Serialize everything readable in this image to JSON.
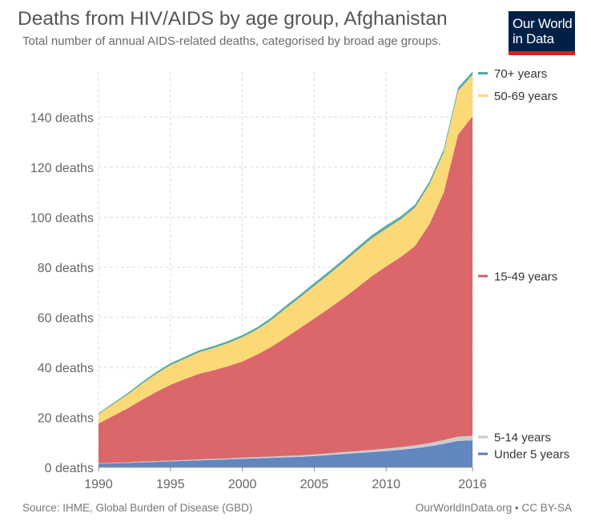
{
  "title": "Deaths from HIV/AIDS by age group, Afghanistan",
  "subtitle": "Total number of annual AIDS-related deaths, categorised by broad age groups.",
  "logo": {
    "line1": "Our World",
    "line2": "in Data",
    "bg": "#002147",
    "accent": "#ce261e"
  },
  "footer": {
    "source": "Source: IHME, Global Burden of Disease (GBD)",
    "license": "OurWorldInData.org • CC BY-SA"
  },
  "chart_data": {
    "type": "area",
    "stacked": true,
    "x": [
      1990,
      1991,
      1992,
      1993,
      1994,
      1995,
      1996,
      1997,
      1998,
      1999,
      2000,
      2001,
      2002,
      2003,
      2004,
      2005,
      2006,
      2007,
      2008,
      2009,
      2010,
      2011,
      2012,
      2013,
      2014,
      2015,
      2016
    ],
    "xlim": [
      1990,
      2016
    ],
    "ylim": [
      0,
      158
    ],
    "x_ticks": [
      1990,
      1995,
      2000,
      2005,
      2010,
      2016
    ],
    "y_ticks": [
      {
        "value": 0,
        "label": "0 deaths"
      },
      {
        "value": 20,
        "label": "20 deaths"
      },
      {
        "value": 40,
        "label": "40 deaths"
      },
      {
        "value": 60,
        "label": "60 deaths"
      },
      {
        "value": 80,
        "label": "80 deaths"
      },
      {
        "value": 100,
        "label": "100 deaths"
      },
      {
        "value": 120,
        "label": "120 deaths"
      },
      {
        "value": 140,
        "label": "140 deaths"
      }
    ],
    "grid": true,
    "legend_placement": "right",
    "series": [
      {
        "name": "Under 5 years",
        "color": "#5a7fba",
        "values": [
          1.5,
          1.6,
          1.8,
          2.0,
          2.2,
          2.4,
          2.6,
          2.8,
          3.0,
          3.2,
          3.4,
          3.6,
          3.8,
          4.0,
          4.2,
          4.5,
          4.9,
          5.3,
          5.7,
          6.1,
          6.5,
          7.0,
          7.6,
          8.4,
          9.4,
          10.6,
          10.8
        ]
      },
      {
        "name": "5-14 years",
        "color": "#c9c9c9",
        "values": [
          0.2,
          0.2,
          0.2,
          0.3,
          0.3,
          0.3,
          0.3,
          0.4,
          0.4,
          0.4,
          0.5,
          0.5,
          0.5,
          0.6,
          0.6,
          0.7,
          0.7,
          0.8,
          0.8,
          0.9,
          1.0,
          1.1,
          1.2,
          1.3,
          1.5,
          1.7,
          1.8
        ]
      },
      {
        "name": "15-49 years",
        "color": "#d95f63",
        "values": [
          15.8,
          18.7,
          21.5,
          24.6,
          27.6,
          30.3,
          32.4,
          34.2,
          35.4,
          36.8,
          38.4,
          40.9,
          43.8,
          47.2,
          50.8,
          54.3,
          57.8,
          61.4,
          65.4,
          69.4,
          72.8,
          75.9,
          79.6,
          87.4,
          98.9,
          120.7,
          127.7
        ]
      },
      {
        "name": "50-69 years",
        "color": "#fbd770",
        "values": [
          3.8,
          4.6,
          5.5,
          6.4,
          7.2,
          7.8,
          8.1,
          8.6,
          8.9,
          9.2,
          9.7,
          10.0,
          10.7,
          11.6,
          12.3,
          13.0,
          13.7,
          14.3,
          14.8,
          15.1,
          15.1,
          15.1,
          15.4,
          15.9,
          16.1,
          17.5,
          16.5
        ]
      },
      {
        "name": "70+ years",
        "color": "#52a5a7",
        "values": [
          0.4,
          0.5,
          0.6,
          0.7,
          0.8,
          0.8,
          0.8,
          0.8,
          0.8,
          0.9,
          0.9,
          0.9,
          1.0,
          1.1,
          1.1,
          1.2,
          1.2,
          1.2,
          1.3,
          1.3,
          1.3,
          1.2,
          1.2,
          1.2,
          1.2,
          1.3,
          1.4
        ]
      }
    ]
  }
}
